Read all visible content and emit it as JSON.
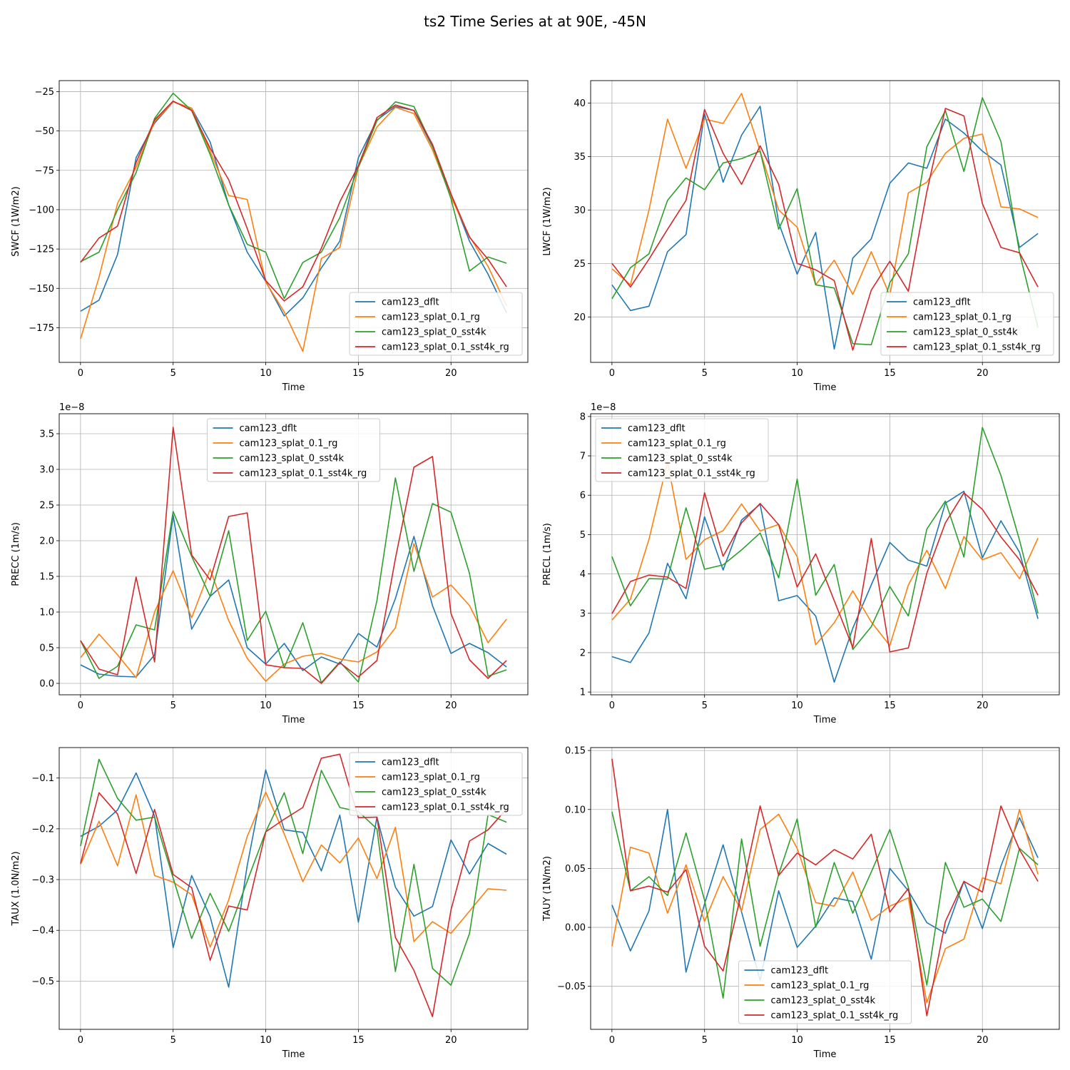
{
  "figure": {
    "title": "ts2 Time Series at at 90E, -45N"
  },
  "colors": {
    "cam123_dflt": "#1f77b4",
    "cam123_splat_0.1_rg": "#ff7f0e",
    "cam123_splat_0_sst4k": "#2ca02c",
    "cam123_splat_0.1_sst4k_rg": "#d62728"
  },
  "chart_data": [
    {
      "type": "line",
      "xlabel": "Time",
      "ylabel": "SWCF (1W/m2)",
      "xlim": [
        -1.15,
        24.15
      ],
      "ylim": [
        -197,
        -18
      ],
      "xticks": [
        0,
        5,
        10,
        15,
        20
      ],
      "yticks": [
        -175,
        -150,
        -125,
        -100,
        -75,
        -50,
        -25
      ],
      "ytick_labels": [
        "−175",
        "−150",
        "−125",
        "−100",
        "−75",
        "−50",
        "−25"
      ],
      "offset_label": "",
      "legend_loc": "lower-right",
      "x": [
        0,
        1,
        2,
        3,
        4,
        5,
        6,
        7,
        8,
        9,
        10,
        11,
        12,
        13,
        14,
        15,
        16,
        17,
        18,
        19,
        20,
        21,
        22,
        23
      ],
      "series": [
        {
          "name": "cam123_dflt",
          "values": [
            -164.5,
            -157.5,
            -128.5,
            -67,
            -45,
            -31.5,
            -35.5,
            -57,
            -97,
            -127,
            -145.5,
            -167.5,
            -156,
            -137,
            -120,
            -67,
            -43,
            -34.5,
            -37,
            -60,
            -90,
            -120,
            -141,
            -165.5
          ]
        },
        {
          "name": "cam123_splat_0.1_rg",
          "values": [
            -182,
            -143,
            -96,
            -73,
            -44,
            -31.5,
            -35.5,
            -63,
            -91,
            -93.5,
            -146,
            -165,
            -190,
            -131,
            -124,
            -73,
            -47.5,
            -35,
            -39,
            -62,
            -92,
            -117,
            -136,
            -161
          ]
        },
        {
          "name": "cam123_splat_0_sst4k",
          "values": [
            -133,
            -127,
            -100,
            -76.5,
            -42,
            -26,
            -37,
            -65,
            -97,
            -122,
            -127,
            -156.5,
            -133.5,
            -127,
            -105,
            -73,
            -43.5,
            -31.5,
            -34.5,
            -59.5,
            -93,
            -139,
            -130,
            -134
          ]
        },
        {
          "name": "cam123_splat_0.1_sst4k_rg",
          "values": [
            -133.5,
            -118,
            -110.5,
            -70,
            -43,
            -31,
            -37,
            -61,
            -81,
            -112,
            -145,
            -158,
            -149,
            -124.5,
            -95,
            -72,
            -41.5,
            -33.5,
            -37,
            -58.5,
            -90,
            -117.5,
            -131.5,
            -149
          ]
        }
      ]
    },
    {
      "type": "line",
      "xlabel": "Time",
      "ylabel": "LWCF (1W/m2)",
      "xlim": [
        -1.15,
        24.15
      ],
      "ylim": [
        15.75,
        42.1
      ],
      "xticks": [
        0,
        5,
        10,
        15,
        20
      ],
      "yticks": [
        20,
        25,
        30,
        35,
        40
      ],
      "ytick_labels": [
        "20",
        "25",
        "30",
        "35",
        "40"
      ],
      "offset_label": "",
      "legend_loc": "lower-right",
      "x": [
        0,
        1,
        2,
        3,
        4,
        5,
        6,
        7,
        8,
        9,
        10,
        11,
        12,
        13,
        14,
        15,
        16,
        17,
        18,
        19,
        20,
        21,
        22,
        23
      ],
      "series": [
        {
          "name": "cam123_dflt",
          "values": [
            23,
            20.6,
            21,
            26.1,
            27.7,
            39,
            32.6,
            37,
            39.7,
            28.8,
            24,
            27.9,
            17,
            25.5,
            27.3,
            32.5,
            34.4,
            33.9,
            38.5,
            37.2,
            35.5,
            34.2,
            26.5,
            27.8
          ]
        },
        {
          "name": "cam123_splat_0.1_rg",
          "values": [
            24.5,
            23,
            30,
            38.5,
            33.9,
            38.5,
            38.1,
            40.9,
            35.5,
            30,
            28.4,
            23,
            25.3,
            22.1,
            26.1,
            22,
            31.6,
            32.6,
            35.3,
            36.7,
            37.1,
            30.3,
            30.1,
            29.3
          ]
        },
        {
          "name": "cam123_splat_0_sst4k",
          "values": [
            21.7,
            24.6,
            25.9,
            30.9,
            33,
            31.9,
            34.4,
            34.8,
            35.5,
            28.2,
            32,
            23,
            22.7,
            17.5,
            17.4,
            23.2,
            25.9,
            35.9,
            39.3,
            33.6,
            40.5,
            36.4,
            26,
            19
          ]
        },
        {
          "name": "cam123_splat_0.1_sst4k_rg",
          "values": [
            25,
            22.8,
            25.4,
            28.2,
            30.9,
            39.4,
            35.3,
            32.4,
            36,
            32.4,
            25,
            24.4,
            23.4,
            16.9,
            22.5,
            25.2,
            22.4,
            31.7,
            39.5,
            38.8,
            30.6,
            26.5,
            26,
            22.8
          ]
        }
      ]
    },
    {
      "type": "line",
      "xlabel": "Time",
      "ylabel": "PRECC (1m/s)",
      "xlim": [
        -1.15,
        24.15
      ],
      "ylim": [
        -0.16,
        3.78
      ],
      "xticks": [
        0,
        5,
        10,
        15,
        20
      ],
      "yticks": [
        0,
        0.5,
        1,
        1.5,
        2,
        2.5,
        3,
        3.5
      ],
      "ytick_labels": [
        "0.0",
        "0.5",
        "1.0",
        "1.5",
        "2.0",
        "2.5",
        "3.0",
        "3.5"
      ],
      "offset_label": "1e−8",
      "legend_loc": "upper-center",
      "x": [
        0,
        1,
        2,
        3,
        4,
        5,
        6,
        7,
        8,
        9,
        10,
        11,
        12,
        13,
        14,
        15,
        16,
        17,
        18,
        19,
        20,
        21,
        22,
        23
      ],
      "series": [
        {
          "name": "cam123_dflt",
          "values": [
            0.26,
            0.13,
            0.1,
            0.09,
            0.4,
            2.36,
            0.76,
            1.22,
            1.45,
            0.5,
            0.27,
            0.56,
            0.18,
            0.37,
            0.27,
            0.7,
            0.51,
            1.19,
            2.06,
            1.09,
            0.42,
            0.56,
            0.43,
            0.23
          ]
        },
        {
          "name": "cam123_splat_0.1_rg",
          "values": [
            0.36,
            0.69,
            0.4,
            0.08,
            1.0,
            1.58,
            0.92,
            1.6,
            0.88,
            0.35,
            0.03,
            0.27,
            0.38,
            0.42,
            0.34,
            0.3,
            0.44,
            0.78,
            1.96,
            1.21,
            1.38,
            1.09,
            0.57,
            0.9
          ]
        },
        {
          "name": "cam123_splat_0_sst4k",
          "values": [
            0.6,
            0.07,
            0.24,
            0.82,
            0.75,
            2.41,
            1.78,
            1.22,
            2.14,
            0.6,
            1.01,
            0.22,
            0.85,
            0.01,
            0.3,
            0.02,
            1.16,
            2.88,
            1.57,
            2.52,
            2.4,
            1.54,
            0.1,
            0.19
          ]
        },
        {
          "name": "cam123_splat_0.1_sst4k_rg",
          "values": [
            0.6,
            0.2,
            0.12,
            1.49,
            0.3,
            3.59,
            1.8,
            1.45,
            2.34,
            2.39,
            0.26,
            0.22,
            0.21,
            0.0,
            0.29,
            0.09,
            0.32,
            1.75,
            3.03,
            3.18,
            0.98,
            0.33,
            0.07,
            0.32
          ]
        }
      ]
    },
    {
      "type": "line",
      "xlabel": "Time",
      "ylabel": "PRECL (1m/s)",
      "xlim": [
        -1.15,
        24.15
      ],
      "ylim": [
        0.93,
        8.07
      ],
      "xticks": [
        0,
        5,
        10,
        15,
        20
      ],
      "yticks": [
        1,
        2,
        3,
        4,
        5,
        6,
        7,
        8
      ],
      "ytick_labels": [
        "1",
        "2",
        "3",
        "4",
        "5",
        "6",
        "7",
        "8"
      ],
      "offset_label": "1e−8",
      "legend_loc": "upper-left",
      "x": [
        0,
        1,
        2,
        3,
        4,
        5,
        6,
        7,
        8,
        9,
        10,
        11,
        12,
        13,
        14,
        15,
        16,
        17,
        18,
        19,
        20,
        21,
        22,
        23
      ],
      "series": [
        {
          "name": "cam123_dflt",
          "values": [
            1.9,
            1.75,
            2.5,
            4.27,
            3.37,
            5.45,
            4.1,
            5.37,
            5.77,
            3.32,
            3.45,
            2.93,
            1.25,
            2.62,
            3.72,
            4.8,
            4.35,
            4.2,
            5.8,
            6.1,
            4.41,
            5.35,
            4.55,
            2.86
          ]
        },
        {
          "name": "cam123_splat_0.1_rg",
          "values": [
            2.83,
            3.36,
            4.88,
            6.85,
            4.37,
            4.87,
            5.1,
            5.78,
            5.09,
            5.26,
            4.44,
            2.2,
            2.76,
            3.57,
            2.78,
            2.18,
            3.72,
            4.6,
            3.63,
            4.95,
            4.36,
            4.54,
            3.88,
            4.91
          ]
        },
        {
          "name": "cam123_splat_0_sst4k",
          "values": [
            4.44,
            3.19,
            3.88,
            3.87,
            5.68,
            4.12,
            4.23,
            4.61,
            5.04,
            3.9,
            6.41,
            3.46,
            4.24,
            2.08,
            2.66,
            3.68,
            2.93,
            5.14,
            5.85,
            4.43,
            7.72,
            6.5,
            4.86,
            3.0
          ]
        },
        {
          "name": "cam123_splat_0.1_sst4k_rg",
          "values": [
            2.99,
            3.81,
            3.97,
            3.92,
            3.63,
            6.06,
            4.45,
            5.3,
            5.79,
            5.25,
            3.67,
            4.51,
            3.32,
            2.13,
            4.9,
            2.02,
            2.12,
            4.02,
            5.3,
            6.06,
            5.64,
            4.94,
            4.36,
            3.46
          ]
        }
      ]
    },
    {
      "type": "line",
      "xlabel": "Time",
      "ylabel": "TAUX (1.0N/m2)",
      "xlim": [
        -1.15,
        24.15
      ],
      "ylim": [
        -0.595,
        -0.04
      ],
      "xticks": [
        0,
        5,
        10,
        15,
        20
      ],
      "yticks": [
        -0.5,
        -0.4,
        -0.3,
        -0.2,
        -0.1
      ],
      "ytick_labels": [
        "−0.5",
        "−0.4",
        "−0.3",
        "−0.2",
        "−0.1"
      ],
      "offset_label": "",
      "legend_loc": "upper-right",
      "x": [
        0,
        1,
        2,
        3,
        4,
        5,
        6,
        7,
        8,
        9,
        10,
        11,
        12,
        13,
        14,
        15,
        16,
        17,
        18,
        19,
        20,
        21,
        22,
        23
      ],
      "series": [
        {
          "name": "cam123_dflt",
          "values": [
            -0.215,
            -0.195,
            -0.163,
            -0.09,
            -0.175,
            -0.434,
            -0.292,
            -0.373,
            -0.512,
            -0.272,
            -0.084,
            -0.202,
            -0.207,
            -0.283,
            -0.173,
            -0.384,
            -0.177,
            -0.315,
            -0.372,
            -0.353,
            -0.222,
            -0.289,
            -0.229,
            -0.25
          ]
        },
        {
          "name": "cam123_splat_0.1_rg",
          "values": [
            -0.27,
            -0.185,
            -0.273,
            -0.133,
            -0.292,
            -0.305,
            -0.33,
            -0.433,
            -0.34,
            -0.215,
            -0.128,
            -0.21,
            -0.304,
            -0.232,
            -0.267,
            -0.218,
            -0.298,
            -0.197,
            -0.422,
            -0.383,
            -0.406,
            -0.362,
            -0.318,
            -0.321
          ]
        },
        {
          "name": "cam123_splat_0_sst4k",
          "values": [
            -0.234,
            -0.063,
            -0.14,
            -0.183,
            -0.177,
            -0.297,
            -0.416,
            -0.327,
            -0.402,
            -0.303,
            -0.206,
            -0.129,
            -0.249,
            -0.085,
            -0.158,
            -0.166,
            -0.2,
            -0.481,
            -0.27,
            -0.475,
            -0.508,
            -0.406,
            -0.172,
            -0.187
          ]
        },
        {
          "name": "cam123_splat_0.1_sst4k_rg",
          "values": [
            -0.268,
            -0.129,
            -0.171,
            -0.288,
            -0.162,
            -0.29,
            -0.316,
            -0.459,
            -0.352,
            -0.36,
            -0.206,
            -0.181,
            -0.158,
            -0.061,
            -0.053,
            -0.178,
            -0.177,
            -0.414,
            -0.479,
            -0.57,
            -0.36,
            -0.224,
            -0.202,
            -0.161
          ]
        }
      ]
    },
    {
      "type": "line",
      "xlabel": "Time",
      "ylabel": "TAUY (1N/m2)",
      "xlim": [
        -1.15,
        24.15
      ],
      "ylim": [
        -0.0865,
        0.1525
      ],
      "xticks": [
        0,
        5,
        10,
        15,
        20
      ],
      "yticks": [
        -0.05,
        0,
        0.05,
        0.1,
        0.15
      ],
      "ytick_labels": [
        "−0.05",
        "0.00",
        "0.05",
        "0.10",
        "0.15"
      ],
      "offset_label": "",
      "legend_loc": "lower-center",
      "x": [
        0,
        1,
        2,
        3,
        4,
        5,
        6,
        7,
        8,
        9,
        10,
        11,
        12,
        13,
        14,
        15,
        16,
        17,
        18,
        19,
        20,
        21,
        22,
        23
      ],
      "series": [
        {
          "name": "cam123_dflt",
          "values": [
            0.019,
            -0.02,
            0.014,
            0.1,
            -0.038,
            0.02,
            0.07,
            0.013,
            -0.045,
            0.031,
            -0.017,
            0.001,
            0.025,
            0.022,
            -0.027,
            0.05,
            0.031,
            0.004,
            -0.005,
            0.039,
            -0.001,
            0.052,
            0.093,
            0.059
          ]
        },
        {
          "name": "cam123_splat_0.1_rg",
          "values": [
            -0.016,
            0.068,
            0.063,
            0.012,
            0.053,
            0.005,
            0.043,
            0.014,
            0.083,
            0.096,
            0.067,
            0.021,
            0.018,
            0.047,
            0.006,
            0.018,
            0.025,
            -0.064,
            -0.018,
            -0.01,
            0.042,
            0.037,
            0.1,
            0.045
          ]
        },
        {
          "name": "cam123_splat_0_sst4k",
          "values": [
            0.098,
            0.031,
            0.043,
            0.027,
            0.08,
            0.023,
            -0.06,
            0.075,
            -0.016,
            0.045,
            0.092,
            0.0,
            0.055,
            0.012,
            0.047,
            0.083,
            0.034,
            -0.049,
            0.055,
            0.017,
            0.024,
            0.005,
            0.067,
            0.053
          ]
        },
        {
          "name": "cam123_splat_0.1_sst4k_rg",
          "values": [
            0.143,
            0.031,
            0.035,
            0.03,
            0.049,
            -0.016,
            -0.037,
            0.03,
            0.103,
            0.044,
            0.063,
            0.053,
            0.066,
            0.058,
            0.079,
            0.013,
            0.033,
            -0.075,
            0.005,
            0.039,
            0.03,
            0.103,
            0.066,
            0.039
          ]
        }
      ]
    }
  ]
}
